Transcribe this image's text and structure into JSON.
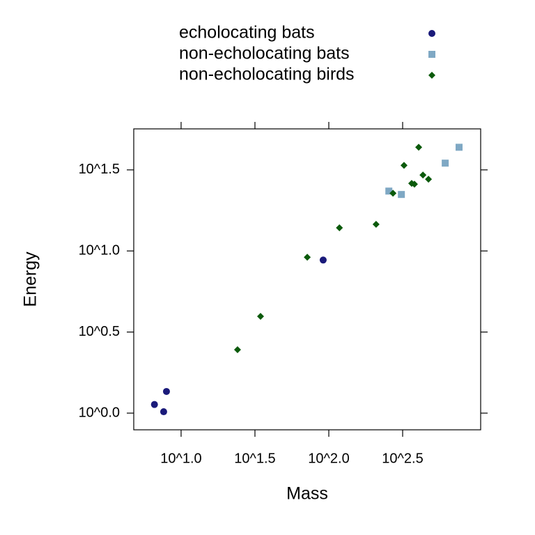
{
  "chart_data": {
    "type": "scatter",
    "x_label": "Mass",
    "y_label": "Energy",
    "log_x": true,
    "log_y": true,
    "legend": "top",
    "grid": false,
    "xlim": [
      4.78,
      1067
    ],
    "ylim": [
      0.789,
      56.6
    ],
    "xticks": [
      {
        "value": 10,
        "label": "10^1.0"
      },
      {
        "value": 31.62,
        "label": "10^1.5"
      },
      {
        "value": 100,
        "label": "10^2.0"
      },
      {
        "value": 316.2,
        "label": "10^2.5"
      }
    ],
    "yticks": [
      {
        "value": 1,
        "label": "10^0.0"
      },
      {
        "value": 3.162,
        "label": "10^0.5"
      },
      {
        "value": 10,
        "label": "10^1.0"
      },
      {
        "value": 31.62,
        "label": "10^1.5"
      }
    ],
    "series": [
      {
        "name": "echolocating bats",
        "color": "#1a1a7a",
        "marker": "circle",
        "x": [
          6.6,
          7.96,
          7.62,
          91.6
        ],
        "values": [
          1.13,
          1.36,
          1.02,
          8.79
        ]
      },
      {
        "name": "non-echolocating bats",
        "color": "#7fa8c4",
        "marker": "square",
        "x": [
          255,
          310,
          614,
          762
        ],
        "values": [
          23.4,
          22.3,
          34.8,
          43.6
        ]
      },
      {
        "name": "non-echolocating birds",
        "color": "#0b5a0b",
        "marker": "diamond",
        "x": [
          24.1,
          34.5,
          71.5,
          118,
          209,
          272,
          323,
          364,
          380,
          406,
          434,
          473
        ],
        "values": [
          2.46,
          3.95,
          9.15,
          13.9,
          14.6,
          22.7,
          33.7,
          26.1,
          25.8,
          43.6,
          29.4,
          27.7
        ]
      }
    ]
  }
}
